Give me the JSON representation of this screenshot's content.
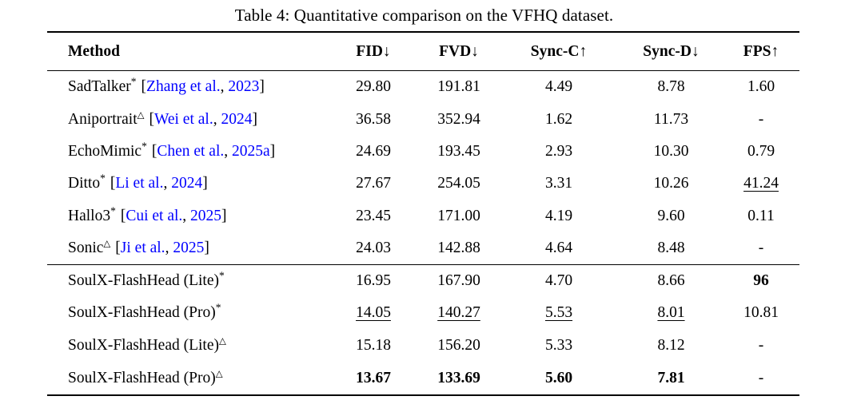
{
  "title": "Table 4: Quantitative comparison on the VFHQ dataset.",
  "columns": [
    "Method",
    "FID↓",
    "FVD↓",
    "Sync-C↑",
    "Sync-D↓",
    "FPS↑"
  ],
  "cite_punct": {
    "open": "[",
    "comma": ", ",
    "close": "]"
  },
  "colors": {
    "citation": "#0000FF",
    "rule": "#000000",
    "text": "#000000"
  },
  "rows": [
    {
      "method": "SadTalker",
      "sup": "*",
      "cite_author": "Zhang et al.",
      "cite_year": "2023",
      "fid": "29.80",
      "fvd": "191.81",
      "sync_c": "4.49",
      "sync_d": "8.78",
      "fps": "1.60"
    },
    {
      "method": "Aniportrait",
      "sup": "△",
      "cite_author": "Wei et al.",
      "cite_year": "2024",
      "fid": "36.58",
      "fvd": "352.94",
      "sync_c": "1.62",
      "sync_d": "11.73",
      "fps": "-"
    },
    {
      "method": "EchoMimic",
      "sup": "*",
      "cite_author": "Chen et al.",
      "cite_year": "2025a",
      "fid": "24.69",
      "fvd": "193.45",
      "sync_c": "2.93",
      "sync_d": "10.30",
      "fps": "0.79"
    },
    {
      "method": "Ditto",
      "sup": "*",
      "cite_author": "Li et al.",
      "cite_year": "2024",
      "fid": "27.67",
      "fvd": "254.05",
      "sync_c": "3.31",
      "sync_d": "10.26",
      "fps": "41.24"
    },
    {
      "method": "Hallo3",
      "sup": "*",
      "cite_author": "Cui et al.",
      "cite_year": "2025",
      "fid": "23.45",
      "fvd": "171.00",
      "sync_c": "4.19",
      "sync_d": "9.60",
      "fps": "0.11"
    },
    {
      "method": "Sonic",
      "sup": "△",
      "cite_author": "Ji et al.",
      "cite_year": "2025",
      "fid": "24.03",
      "fvd": "142.88",
      "sync_c": "4.64",
      "sync_d": "8.48",
      "fps": "-"
    },
    {
      "method": "SoulX-FlashHead (Lite)",
      "sup": "*",
      "fid": "16.95",
      "fvd": "167.90",
      "sync_c": "4.70",
      "sync_d": "8.66",
      "fps": "96"
    },
    {
      "method": "SoulX-FlashHead (Pro)",
      "sup": "*",
      "fid": "14.05",
      "fvd": "140.27",
      "sync_c": "5.53",
      "sync_d": "8.01",
      "fps": "10.81"
    },
    {
      "method": "SoulX-FlashHead (Lite)",
      "sup": "△",
      "fid": "15.18",
      "fvd": "156.20",
      "sync_c": "5.33",
      "sync_d": "8.12",
      "fps": "-"
    },
    {
      "method": "SoulX-FlashHead (Pro)",
      "sup": "△",
      "fid": "13.67",
      "fvd": "133.69",
      "sync_c": "5.60",
      "sync_d": "7.81",
      "fps": "-"
    }
  ]
}
